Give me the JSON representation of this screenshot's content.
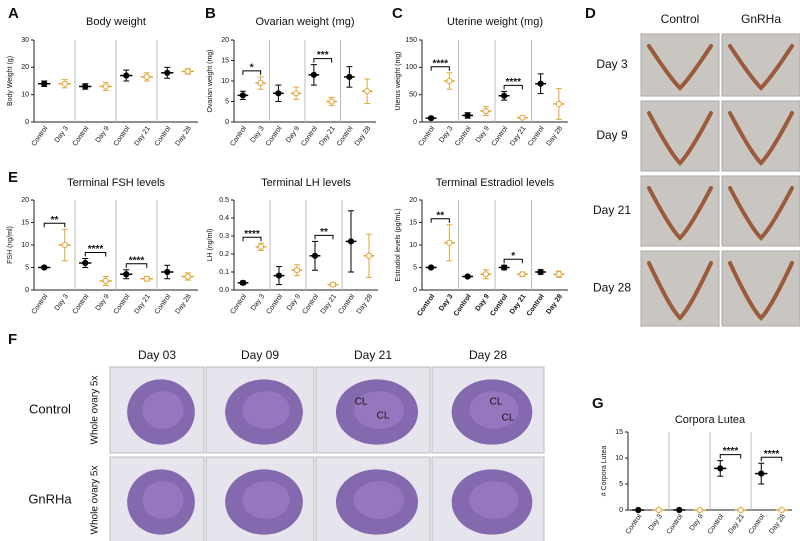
{
  "chart_data": [
    {
      "type": "dot",
      "panel": "A",
      "title": "Body weight",
      "y_label": "Body Weight (g)",
      "categories": [
        "Control",
        "Day 3",
        "Control",
        "Day 9",
        "Control",
        "Day 21",
        "Control",
        "Day 28"
      ],
      "values": [
        14,
        14,
        13,
        13,
        17,
        16.5,
        18,
        18.5
      ],
      "errors": [
        1,
        1.5,
        1,
        1.5,
        2,
        1.5,
        2,
        1
      ],
      "colors": [
        "#000000",
        "#e3a435",
        "#000000",
        "#e3a435",
        "#000000",
        "#e3a435",
        "#000000",
        "#e3a435"
      ],
      "ylim": [
        0,
        30
      ],
      "yticks": [
        0,
        10,
        20,
        30
      ],
      "annotations": []
    },
    {
      "type": "dot",
      "panel": "B",
      "title": "Ovarian weight (mg)",
      "y_label": "Ovarian weight (mg)",
      "categories": [
        "Control",
        "Day 3",
        "Control",
        "Day 9",
        "Control",
        "Day 21",
        "Control",
        "Day 28"
      ],
      "values": [
        6.5,
        9.5,
        7,
        7,
        11.5,
        5,
        11,
        7.5
      ],
      "errors": [
        1,
        1.5,
        2,
        1.5,
        2.5,
        1,
        2.5,
        3
      ],
      "colors": [
        "#000000",
        "#e3a435",
        "#000000",
        "#e3a435",
        "#000000",
        "#e3a435",
        "#000000",
        "#e3a435"
      ],
      "ylim": [
        0,
        20
      ],
      "yticks": [
        0,
        5,
        10,
        15,
        20
      ],
      "annotations": [
        {
          "text": "*",
          "pair": [
            0,
            1
          ]
        },
        {
          "text": "***",
          "pair": [
            4,
            5
          ]
        }
      ]
    },
    {
      "type": "dot",
      "panel": "C",
      "title": "Uterine weight (mg)",
      "y_label": "Uterus weight (mg)",
      "categories": [
        "Control",
        "Day 3",
        "Control",
        "Day 9",
        "Control",
        "Day 21",
        "Control",
        "Day 28"
      ],
      "values": [
        7,
        75,
        12,
        20,
        48,
        8,
        70,
        33
      ],
      "errors": [
        2,
        15,
        5,
        8,
        8,
        2,
        18,
        28
      ],
      "colors": [
        "#000000",
        "#e3a435",
        "#000000",
        "#e3a435",
        "#000000",
        "#e3a435",
        "#000000",
        "#e3a435"
      ],
      "ylim": [
        0,
        150
      ],
      "yticks": [
        0,
        50,
        100,
        150
      ],
      "annotations": [
        {
          "text": "****",
          "pair": [
            0,
            1
          ]
        },
        {
          "text": "****",
          "pair": [
            4,
            5
          ]
        }
      ]
    },
    {
      "type": "dot",
      "panel": "E",
      "title": "Terminal FSH levels",
      "y_label": "FSH (ng/ml)",
      "categories": [
        "Control",
        "Day 3",
        "Control",
        "Day 9",
        "Control",
        "Day 21",
        "Control",
        "Day 28"
      ],
      "values": [
        5,
        10,
        6,
        2,
        3.5,
        2.5,
        4,
        3
      ],
      "errors": [
        0.2,
        3.5,
        1,
        1,
        1,
        0.5,
        1.5,
        0.8
      ],
      "colors": [
        "#000000",
        "#e3a435",
        "#000000",
        "#e3a435",
        "#000000",
        "#e3a435",
        "#000000",
        "#e3a435"
      ],
      "ylim": [
        0,
        20
      ],
      "yticks": [
        0,
        5,
        10,
        15,
        20
      ],
      "annotations": [
        {
          "text": "**",
          "pair": [
            0,
            1
          ]
        },
        {
          "text": "****",
          "pair": [
            2,
            3
          ]
        },
        {
          "text": "****",
          "pair": [
            4,
            5
          ]
        }
      ]
    },
    {
      "type": "dot",
      "title": "Terminal LH levels",
      "y_label": "LH (ng/ml)",
      "categories": [
        "Control",
        "Day 3",
        "Control",
        "Day 9",
        "Control",
        "Day 21",
        "Control",
        "Day 28"
      ],
      "values": [
        0.04,
        0.24,
        0.08,
        0.11,
        0.19,
        0.03,
        0.27,
        0.19
      ],
      "errors": [
        0.01,
        0.02,
        0.05,
        0.03,
        0.08,
        0.01,
        0.17,
        0.12
      ],
      "colors": [
        "#000000",
        "#e3a435",
        "#000000",
        "#e3a435",
        "#000000",
        "#e3a435",
        "#000000",
        "#e3a435"
      ],
      "ylim": [
        0,
        0.5
      ],
      "yticks": [
        {
          "value": 0,
          "label": "0.0"
        },
        0.1,
        0.2,
        0.3,
        0.4,
        0.5
      ],
      "annotations": [
        {
          "text": "****",
          "pair": [
            0,
            1
          ]
        },
        {
          "text": "**",
          "pair": [
            4,
            5
          ]
        }
      ]
    },
    {
      "type": "dot",
      "title": "Terminal Estradiol levels",
      "y_label": "Estradiol levels (pg/mL)",
      "categories": [
        "Control",
        "Day 3",
        "Control",
        "Day 9",
        "Control",
        "Day 21",
        "Control",
        "Day 28"
      ],
      "values": [
        5,
        10.5,
        3,
        3.5,
        5,
        3.5,
        4,
        3.5
      ],
      "errors": [
        0.2,
        4,
        0.1,
        1,
        0.5,
        0.5,
        0.5,
        0.7
      ],
      "colors": [
        "#000000",
        "#e3a435",
        "#000000",
        "#e3a435",
        "#000000",
        "#e3a435",
        "#000000",
        "#e3a435"
      ],
      "ylim": [
        0,
        20
      ],
      "yticks": [
        0,
        5,
        10,
        15,
        20
      ],
      "annotations": [
        {
          "text": "**",
          "pair": [
            0,
            1
          ]
        },
        {
          "text": "*",
          "pair": [
            4,
            5
          ]
        }
      ]
    },
    {
      "type": "dot",
      "panel": "G",
      "title": "Corpora Lutea",
      "y_label": "# Corpora Lutea",
      "categories": [
        "Control",
        "Day 3",
        "Control",
        "Day 9",
        "Control",
        "Day 21",
        "Control",
        "Day 28"
      ],
      "values": [
        0,
        0,
        0,
        0,
        8,
        0,
        7,
        0
      ],
      "errors": [
        0,
        0,
        0,
        0,
        1.5,
        0,
        2,
        0
      ],
      "colors": [
        "#000000",
        "#e3a435",
        "#000000",
        "#e3a435",
        "#000000",
        "#e3a435",
        "#000000",
        "#e3a435"
      ],
      "ylim": [
        0,
        15
      ],
      "yticks": [
        0,
        5,
        10,
        15
      ],
      "annotations": [
        {
          "text": "****",
          "pair": [
            4,
            5
          ]
        },
        {
          "text": "****",
          "pair": [
            6,
            7
          ]
        }
      ]
    }
  ],
  "photos": {
    "panel": "D",
    "columns": [
      "Control",
      "GnRHa"
    ],
    "rows": [
      "Day 3",
      "Day 9",
      "Day 21",
      "Day 28"
    ]
  },
  "histology": {
    "panel": "F",
    "columns": [
      "Day 03",
      "Day 09",
      "Day 21",
      "Day 28"
    ],
    "rows": [
      "Control",
      "GnRHa"
    ],
    "row_note": "Whole ovary 5x",
    "cl_labels": [
      "CL",
      "CL",
      "CL",
      "CL"
    ]
  }
}
